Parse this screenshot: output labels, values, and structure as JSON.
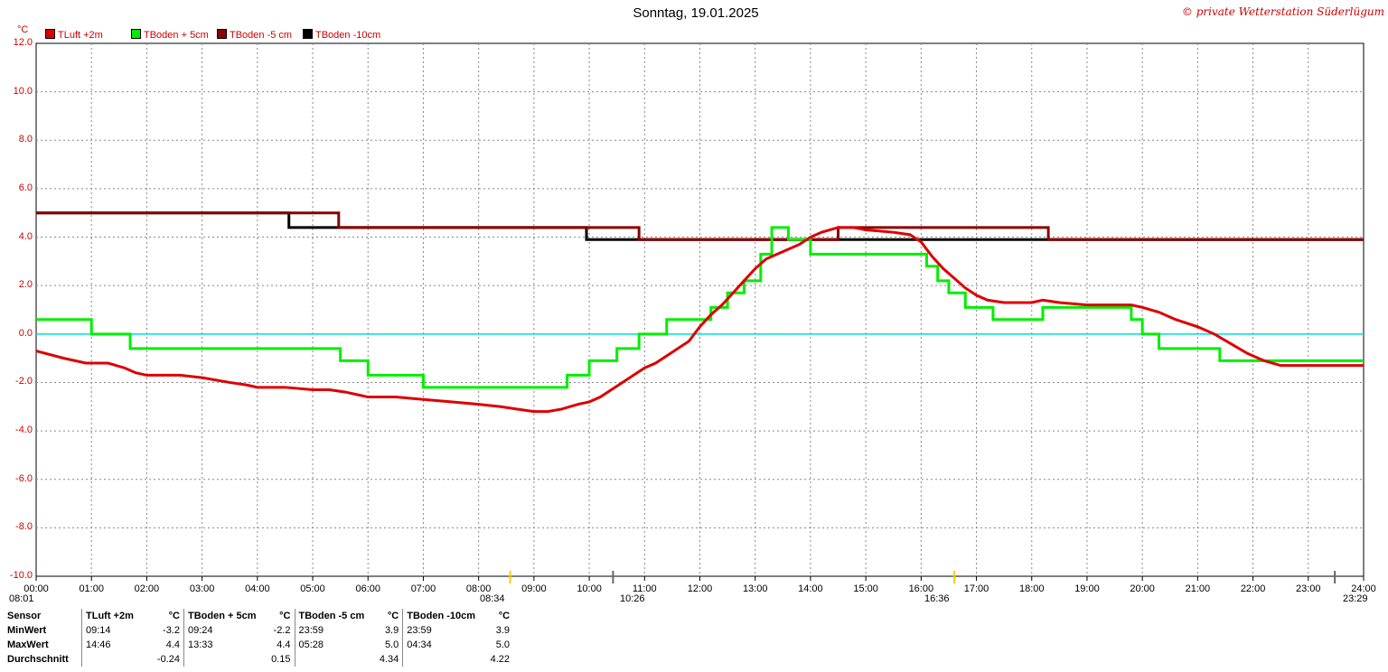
{
  "page": {
    "title": "Sonntag, 19.01.2025",
    "copyright": "© private Wetterstation Süderlügum",
    "unit": "°C"
  },
  "legend": [
    {
      "name": "TLuft +2m",
      "color": "#dd0000"
    },
    {
      "name": "TBoden + 5cm",
      "color": "#00ee00"
    },
    {
      "name": "TBoden -5 cm",
      "color": "#880000"
    },
    {
      "name": "TBoden -10cm",
      "color": "#000000"
    }
  ],
  "markers": [
    {
      "time": "08:01",
      "icon": "sun-rise-icon"
    },
    {
      "time": "08:34",
      "icon": "sun-dot-icon"
    },
    {
      "time": "10:26",
      "icon": "moon-set-icon"
    },
    {
      "time": "16:36",
      "icon": "sun-set-icon"
    },
    {
      "time": "23:29",
      "icon": "moon-rise-icon"
    }
  ],
  "chart_data": {
    "type": "line",
    "title": "Sonntag, 19.01.2025",
    "ylabel": "°C",
    "xlim": [
      0,
      24
    ],
    "ylim": [
      -10,
      12
    ],
    "x_ticks": [
      "00:00",
      "01:00",
      "02:00",
      "03:00",
      "04:00",
      "05:00",
      "06:00",
      "07:00",
      "08:00",
      "09:00",
      "10:00",
      "11:00",
      "12:00",
      "13:00",
      "14:00",
      "15:00",
      "16:00",
      "17:00",
      "18:00",
      "19:00",
      "20:00",
      "21:00",
      "22:00",
      "23:00",
      "24:00"
    ],
    "y_ticks": [
      "12.0",
      "10.0",
      "8.0",
      "6.0",
      "4.0",
      "2.0",
      "0.0",
      "-2.0",
      "-4.0",
      "-6.0",
      "-8.0",
      "-10.0"
    ],
    "y_tick_values": [
      12,
      10,
      8,
      6,
      4,
      2,
      0,
      -2,
      -4,
      -6,
      -8,
      -10
    ],
    "grid": true,
    "zero_line_color": "#00dddd",
    "series": [
      {
        "name": "TLuft +2m",
        "color": "#dd0000",
        "step": false,
        "points": [
          [
            0,
            -0.7
          ],
          [
            0.5,
            -1.0
          ],
          [
            0.9,
            -1.2
          ],
          [
            1.3,
            -1.2
          ],
          [
            1.6,
            -1.4
          ],
          [
            1.8,
            -1.6
          ],
          [
            2.0,
            -1.7
          ],
          [
            2.6,
            -1.7
          ],
          [
            3.0,
            -1.8
          ],
          [
            3.5,
            -2.0
          ],
          [
            3.8,
            -2.1
          ],
          [
            4.0,
            -2.2
          ],
          [
            4.5,
            -2.2
          ],
          [
            5.0,
            -2.3
          ],
          [
            5.3,
            -2.3
          ],
          [
            5.6,
            -2.4
          ],
          [
            5.8,
            -2.5
          ],
          [
            6.0,
            -2.6
          ],
          [
            6.5,
            -2.6
          ],
          [
            7.0,
            -2.7
          ],
          [
            7.5,
            -2.8
          ],
          [
            8.0,
            -2.9
          ],
          [
            8.4,
            -3.0
          ],
          [
            8.7,
            -3.1
          ],
          [
            9.0,
            -3.2
          ],
          [
            9.25,
            -3.2
          ],
          [
            9.5,
            -3.1
          ],
          [
            9.8,
            -2.9
          ],
          [
            10.0,
            -2.8
          ],
          [
            10.2,
            -2.6
          ],
          [
            10.4,
            -2.3
          ],
          [
            10.6,
            -2.0
          ],
          [
            10.8,
            -1.7
          ],
          [
            11.0,
            -1.4
          ],
          [
            11.2,
            -1.2
          ],
          [
            11.4,
            -0.9
          ],
          [
            11.6,
            -0.6
          ],
          [
            11.8,
            -0.3
          ],
          [
            12.0,
            0.3
          ],
          [
            12.2,
            0.8
          ],
          [
            12.4,
            1.2
          ],
          [
            12.6,
            1.7
          ],
          [
            12.8,
            2.2
          ],
          [
            13.0,
            2.7
          ],
          [
            13.2,
            3.1
          ],
          [
            13.5,
            3.4
          ],
          [
            13.8,
            3.7
          ],
          [
            14.0,
            4.0
          ],
          [
            14.2,
            4.2
          ],
          [
            14.5,
            4.4
          ],
          [
            14.77,
            4.4
          ],
          [
            15.0,
            4.3
          ],
          [
            15.5,
            4.2
          ],
          [
            15.8,
            4.1
          ],
          [
            16.0,
            3.8
          ],
          [
            16.2,
            3.2
          ],
          [
            16.4,
            2.7
          ],
          [
            16.6,
            2.3
          ],
          [
            16.8,
            1.9
          ],
          [
            17.0,
            1.6
          ],
          [
            17.2,
            1.4
          ],
          [
            17.5,
            1.3
          ],
          [
            18.0,
            1.3
          ],
          [
            18.2,
            1.4
          ],
          [
            18.5,
            1.3
          ],
          [
            19.0,
            1.2
          ],
          [
            19.5,
            1.2
          ],
          [
            19.8,
            1.2
          ],
          [
            20.0,
            1.1
          ],
          [
            20.3,
            0.9
          ],
          [
            20.6,
            0.6
          ],
          [
            21.0,
            0.3
          ],
          [
            21.3,
            0.0
          ],
          [
            21.6,
            -0.4
          ],
          [
            21.9,
            -0.8
          ],
          [
            22.2,
            -1.1
          ],
          [
            22.5,
            -1.3
          ],
          [
            23.0,
            -1.3
          ],
          [
            23.5,
            -1.3
          ],
          [
            24.0,
            -1.3
          ]
        ]
      },
      {
        "name": "TBoden + 5cm",
        "color": "#00ee00",
        "step": true,
        "points": [
          [
            0,
            0.6
          ],
          [
            0.5,
            0.6
          ],
          [
            1.0,
            0.0
          ],
          [
            1.3,
            0.0
          ],
          [
            1.7,
            -0.6
          ],
          [
            2.4,
            -0.6
          ],
          [
            2.5,
            -0.6
          ],
          [
            4.0,
            -0.6
          ],
          [
            5.5,
            -1.1
          ],
          [
            6.0,
            -1.7
          ],
          [
            7.0,
            -2.2
          ],
          [
            8.0,
            -2.2
          ],
          [
            9.0,
            -2.2
          ],
          [
            9.4,
            -2.2
          ],
          [
            9.6,
            -1.7
          ],
          [
            10.0,
            -1.1
          ],
          [
            10.5,
            -0.6
          ],
          [
            10.9,
            0.0
          ],
          [
            11.0,
            0.0
          ],
          [
            11.4,
            0.6
          ],
          [
            12.2,
            1.1
          ],
          [
            12.5,
            1.7
          ],
          [
            12.8,
            2.2
          ],
          [
            13.1,
            3.3
          ],
          [
            13.3,
            4.4
          ],
          [
            13.6,
            3.9
          ],
          [
            14.0,
            3.3
          ],
          [
            14.4,
            3.3
          ],
          [
            15.0,
            3.3
          ],
          [
            15.7,
            3.3
          ],
          [
            16.1,
            2.8
          ],
          [
            16.3,
            2.2
          ],
          [
            16.5,
            1.7
          ],
          [
            16.8,
            1.1
          ],
          [
            17.3,
            0.6
          ],
          [
            18.0,
            0.6
          ],
          [
            18.2,
            1.1
          ],
          [
            19.5,
            1.1
          ],
          [
            19.8,
            0.6
          ],
          [
            20.0,
            0.0
          ],
          [
            20.3,
            -0.6
          ],
          [
            21.0,
            -0.6
          ],
          [
            21.4,
            -1.1
          ],
          [
            22.5,
            -1.1
          ],
          [
            23.0,
            -1.1
          ],
          [
            24.0,
            -1.1
          ]
        ]
      },
      {
        "name": "TBoden -5 cm",
        "color": "#880000",
        "step": true,
        "points": [
          [
            0,
            5.0
          ],
          [
            4.6,
            5.0
          ],
          [
            5.47,
            4.4
          ],
          [
            9.95,
            4.4
          ],
          [
            10.9,
            3.9
          ],
          [
            14.5,
            4.4
          ],
          [
            18.3,
            3.9
          ],
          [
            24.0,
            3.9
          ]
        ]
      },
      {
        "name": "TBoden -10cm",
        "color": "#000000",
        "step": true,
        "points": [
          [
            0,
            5.0
          ],
          [
            4.57,
            4.4
          ],
          [
            9.95,
            3.9
          ],
          [
            24.0,
            3.9
          ]
        ]
      }
    ]
  },
  "stats": {
    "headers": [
      "Sensor",
      "TLuft +2m",
      "°C",
      "TBoden + 5cm",
      "°C",
      "TBoden -5 cm",
      "°C",
      "TBoden -10cm",
      "°C"
    ],
    "rows": [
      [
        "MinWert",
        "09:14",
        "-3.2",
        "09:24",
        "-2.2",
        "23:59",
        "3.9",
        "23:59",
        "3.9"
      ],
      [
        "MaxWert",
        "14:46",
        "4.4",
        "13:33",
        "4.4",
        "05:28",
        "5.0",
        "04:34",
        "5.0"
      ],
      [
        "Durchschnitt",
        "",
        "-0.24",
        "",
        "0.15",
        "",
        "4.34",
        "",
        "4.22"
      ]
    ]
  }
}
